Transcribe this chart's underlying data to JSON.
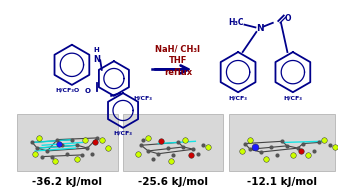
{
  "background_color": "#ffffff",
  "blue": "#00008b",
  "dark_red": "#8b0000",
  "arrow_text1": "NaH/ CH₃I",
  "arrow_text2": "THF",
  "arrow_text3": "reflux",
  "energy_labels": [
    "-36.2 kJ/mol",
    "-25.6 kJ/mol",
    "-12.1 kJ/mol"
  ],
  "energy_color": "#000000",
  "energy_fontsize": 7.5,
  "fig_width": 3.52,
  "fig_height": 1.89,
  "dpi": 100
}
